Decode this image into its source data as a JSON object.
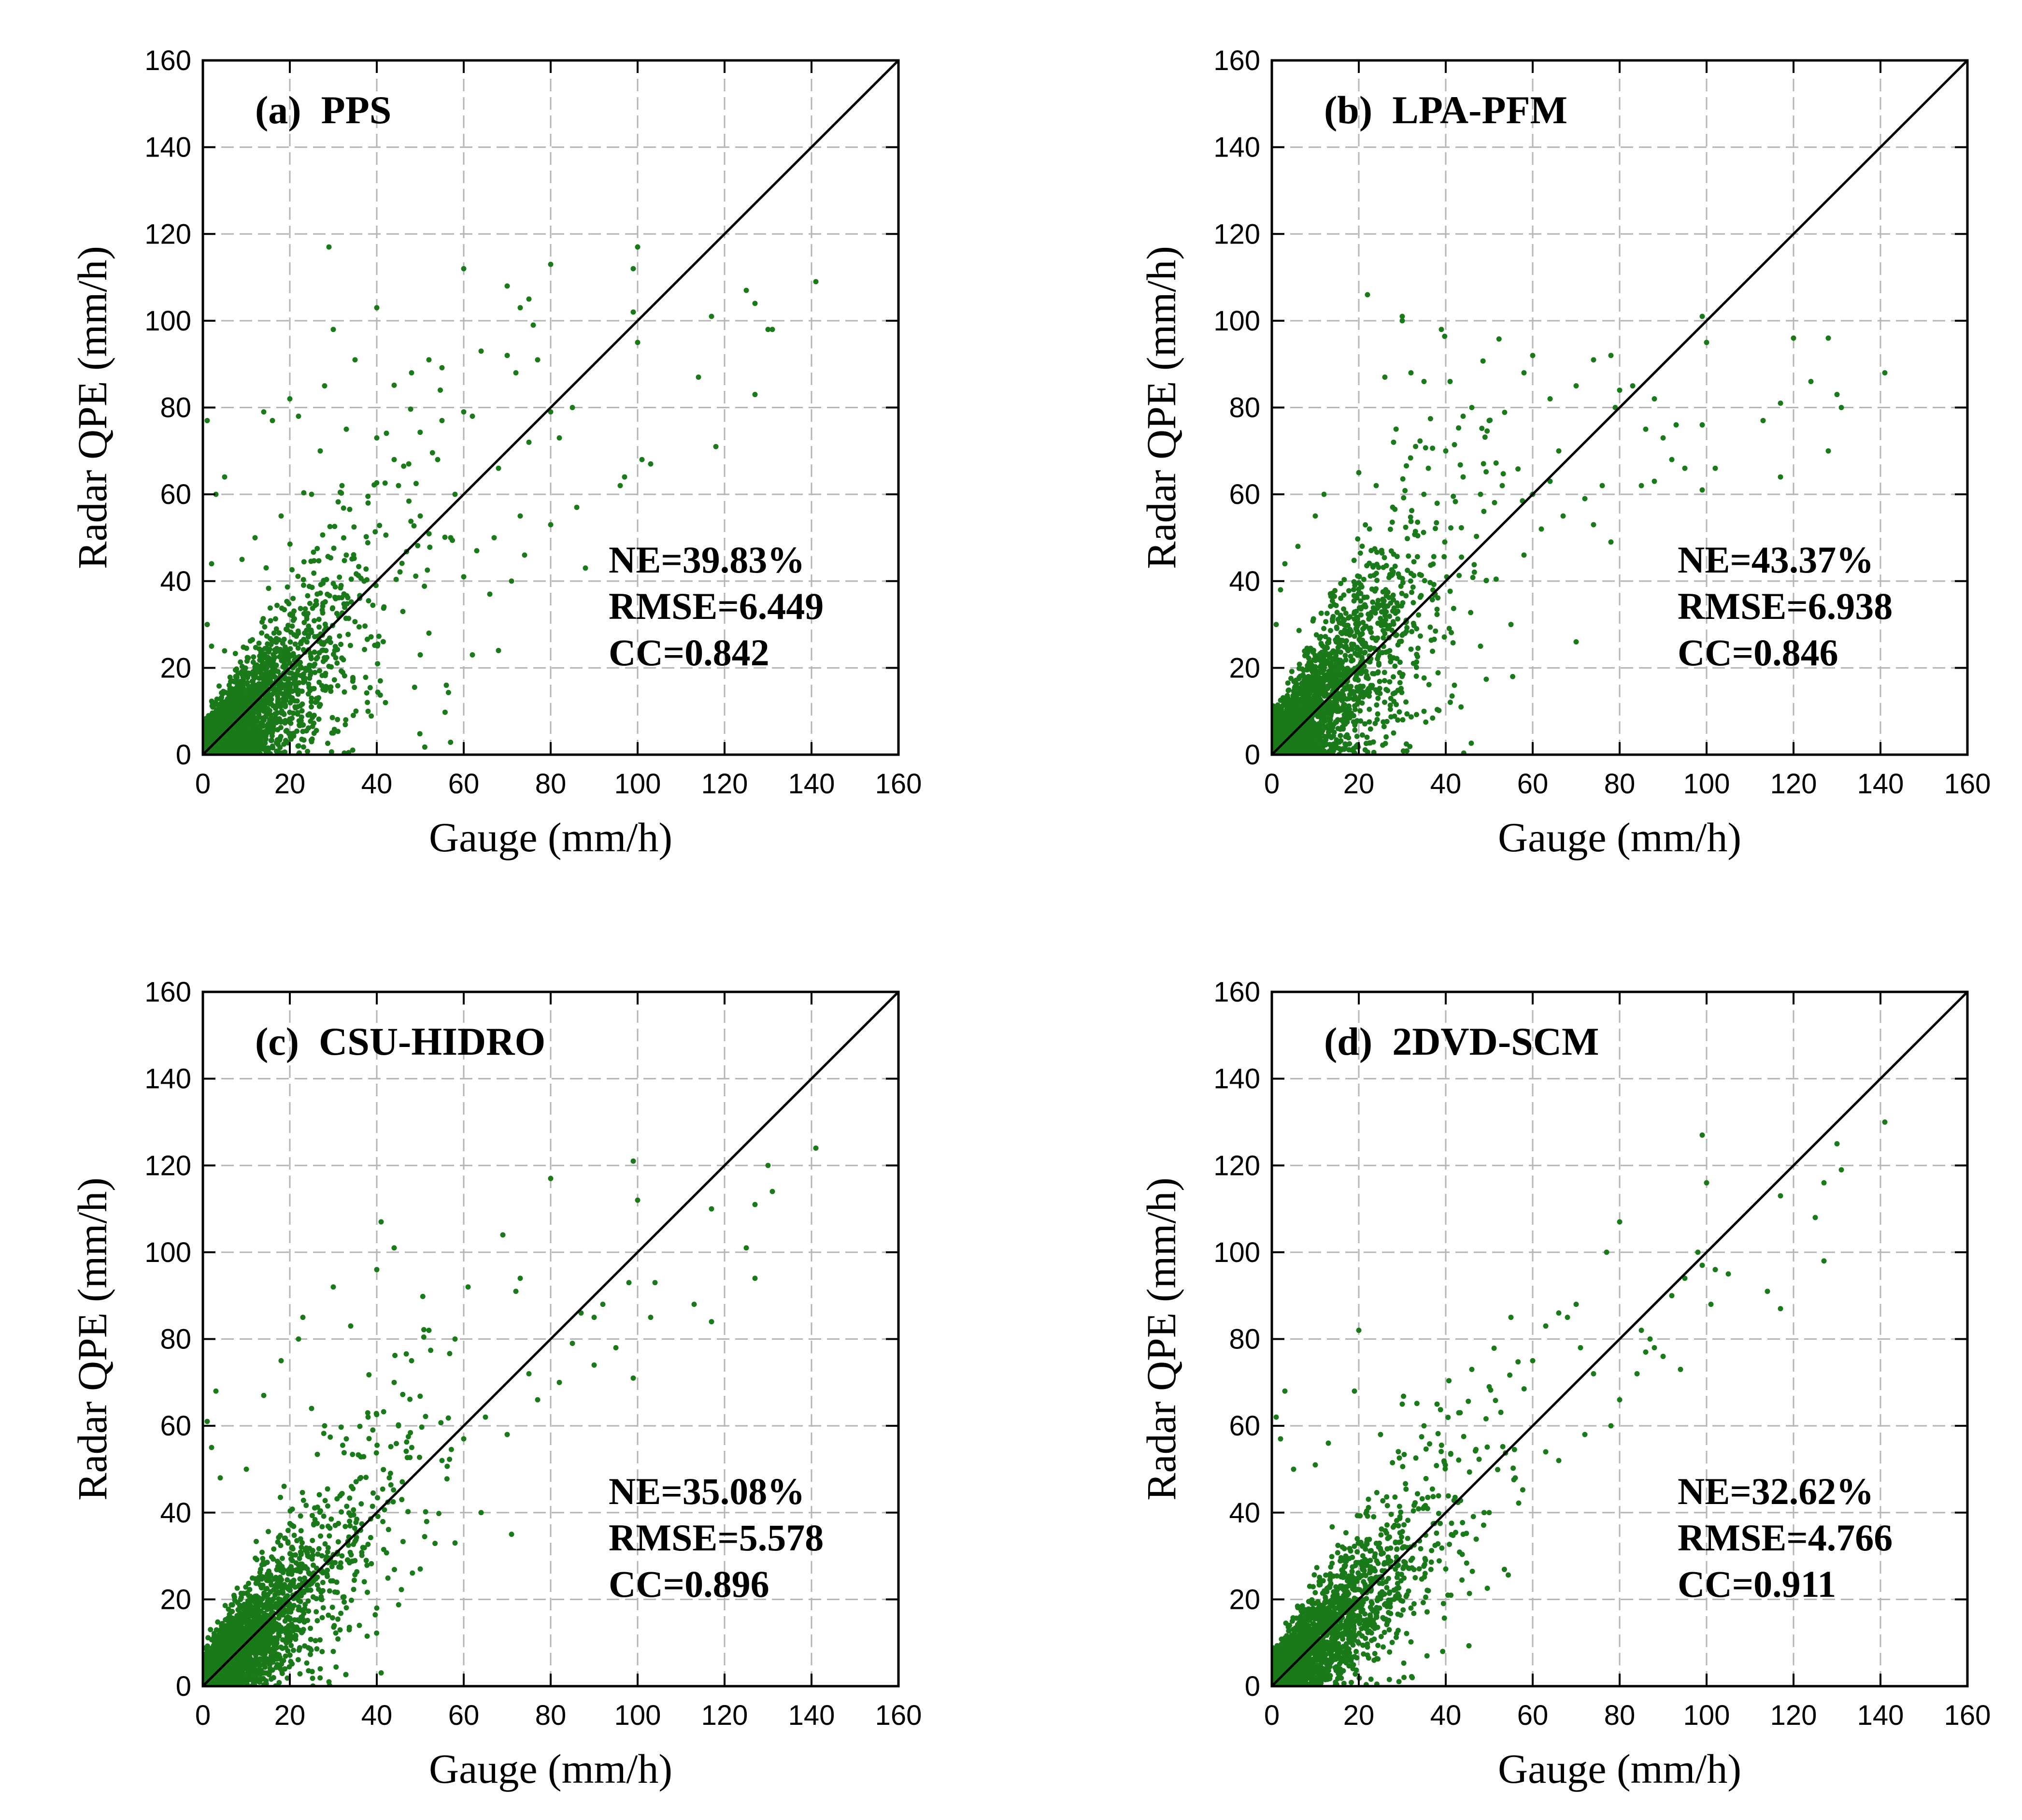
{
  "figure": {
    "point_color": "#1a7a1a",
    "line_color": "#000000",
    "grid_color": "#b5b5b5"
  },
  "chart_data": [
    {
      "type": "scatter",
      "panel_label": "(a)  PPS",
      "xlabel": "Gauge (mm/h)",
      "ylabel": "Radar QPE (mm/h)",
      "xlim": [
        0,
        160
      ],
      "ylim": [
        0,
        160
      ],
      "xticks": [
        "0",
        "20",
        "40",
        "60",
        "80",
        "100",
        "120",
        "140",
        "160"
      ],
      "yticks": [
        "0",
        "20",
        "40",
        "60",
        "80",
        "100",
        "120",
        "140",
        "160"
      ],
      "grid": true,
      "reference_line": "1:1",
      "stats": [
        "NE=39.83%",
        "RMSE=6.449",
        "CC=0.842"
      ],
      "point_cloud": {
        "n": 2600,
        "slope": 0.88,
        "spread": 0.36,
        "seed": 11
      },
      "points": [
        [
          29,
          117
        ],
        [
          40,
          103
        ],
        [
          60,
          112
        ],
        [
          70,
          108
        ],
        [
          73,
          103
        ],
        [
          75,
          105
        ],
        [
          80,
          113
        ],
        [
          99,
          112
        ],
        [
          100,
          117
        ],
        [
          99,
          102
        ],
        [
          100,
          95
        ],
        [
          117,
          101
        ],
        [
          125,
          107
        ],
        [
          127,
          104
        ],
        [
          130,
          98
        ],
        [
          131,
          98
        ],
        [
          141,
          109
        ],
        [
          118,
          71
        ],
        [
          114,
          87
        ],
        [
          127,
          83
        ],
        [
          85,
          80
        ],
        [
          80,
          79
        ],
        [
          82,
          73
        ],
        [
          96,
          62
        ],
        [
          101,
          68
        ],
        [
          103,
          67
        ],
        [
          97,
          64
        ],
        [
          86,
          57
        ],
        [
          88,
          43
        ],
        [
          72,
          88
        ],
        [
          70,
          92
        ],
        [
          77,
          91
        ],
        [
          64,
          93
        ],
        [
          55,
          77
        ],
        [
          52,
          91
        ],
        [
          48,
          88
        ],
        [
          60,
          79
        ],
        [
          62,
          78
        ],
        [
          76,
          99
        ],
        [
          75,
          72
        ],
        [
          68,
          66
        ],
        [
          73,
          55
        ],
        [
          80,
          53
        ],
        [
          71,
          40
        ],
        [
          66,
          37
        ],
        [
          60,
          41
        ],
        [
          52,
          28
        ],
        [
          62,
          23
        ],
        [
          30,
          98
        ],
        [
          35,
          91
        ],
        [
          33,
          75
        ],
        [
          28,
          85
        ],
        [
          20,
          82
        ],
        [
          14,
          79
        ],
        [
          16,
          77
        ],
        [
          22,
          78
        ],
        [
          27,
          70
        ],
        [
          40,
          73
        ],
        [
          44,
          68
        ],
        [
          1,
          77
        ],
        [
          5,
          64
        ],
        [
          3,
          60
        ],
        [
          2,
          44
        ],
        [
          1,
          30
        ],
        [
          2,
          25
        ],
        [
          50,
          23
        ],
        [
          56,
          16
        ],
        [
          68,
          24
        ],
        [
          42,
          12
        ],
        [
          38,
          10
        ],
        [
          30,
          5
        ],
        [
          25,
          3
        ],
        [
          32,
          62
        ],
        [
          45,
          62
        ],
        [
          50,
          55
        ],
        [
          57,
          50
        ],
        [
          63,
          47
        ],
        [
          67,
          50
        ],
        [
          74,
          46
        ],
        [
          58,
          60
        ],
        [
          54,
          68
        ],
        [
          38,
          58
        ],
        [
          25,
          60
        ],
        [
          18,
          55
        ],
        [
          12,
          50
        ],
        [
          9,
          45
        ],
        [
          46,
          33
        ]
      ]
    },
    {
      "type": "scatter",
      "panel_label": "(b)  LPA-PFM",
      "xlabel": "Gauge (mm/h)",
      "ylabel": "Radar QPE (mm/h)",
      "xlim": [
        0,
        160
      ],
      "ylim": [
        0,
        160
      ],
      "xticks": [
        "0",
        "20",
        "40",
        "60",
        "80",
        "100",
        "120",
        "140",
        "160"
      ],
      "yticks": [
        "0",
        "20",
        "40",
        "60",
        "80",
        "100",
        "120",
        "140",
        "160"
      ],
      "grid": true,
      "reference_line": "1:1",
      "stats": [
        "NE=43.37%",
        "RMSE=6.938",
        "CC=0.846"
      ],
      "point_cloud": {
        "n": 2600,
        "slope": 1.06,
        "spread": 0.42,
        "seed": 23
      },
      "points": [
        [
          22,
          106
        ],
        [
          30,
          101
        ],
        [
          30,
          100
        ],
        [
          39,
          98
        ],
        [
          41,
          86
        ],
        [
          32,
          88
        ],
        [
          26,
          87
        ],
        [
          35,
          86
        ],
        [
          46,
          80
        ],
        [
          44,
          78
        ],
        [
          50,
          77
        ],
        [
          60,
          92
        ],
        [
          58,
          88
        ],
        [
          64,
          82
        ],
        [
          70,
          85
        ],
        [
          74,
          91
        ],
        [
          78,
          92
        ],
        [
          83,
          85
        ],
        [
          79,
          80
        ],
        [
          86,
          75
        ],
        [
          90,
          73
        ],
        [
          93,
          76
        ],
        [
          95,
          66
        ],
        [
          99,
          61
        ],
        [
          99,
          76
        ],
        [
          102,
          66
        ],
        [
          100,
          95
        ],
        [
          99,
          101
        ],
        [
          113,
          77
        ],
        [
          117,
          81
        ],
        [
          117,
          64
        ],
        [
          120,
          96
        ],
        [
          124,
          86
        ],
        [
          128,
          96
        ],
        [
          128,
          70
        ],
        [
          130,
          83
        ],
        [
          131,
          80
        ],
        [
          141,
          88
        ],
        [
          85,
          62
        ],
        [
          88,
          63
        ],
        [
          92,
          68
        ],
        [
          76,
          62
        ],
        [
          72,
          59
        ],
        [
          70,
          26
        ],
        [
          64,
          63
        ],
        [
          60,
          60
        ],
        [
          66,
          70
        ],
        [
          53,
          62
        ],
        [
          48,
          60
        ],
        [
          44,
          64
        ],
        [
          40,
          70
        ],
        [
          36,
          66
        ],
        [
          28,
          72
        ],
        [
          24,
          62
        ],
        [
          20,
          65
        ],
        [
          12,
          60
        ],
        [
          10,
          55
        ],
        [
          6,
          48
        ],
        [
          3,
          44
        ],
        [
          2,
          38
        ],
        [
          1,
          30
        ],
        [
          58,
          46
        ],
        [
          62,
          52
        ],
        [
          67,
          55
        ],
        [
          74,
          53
        ],
        [
          78,
          49
        ],
        [
          55,
          30
        ],
        [
          48,
          25
        ],
        [
          42,
          16
        ],
        [
          35,
          10
        ],
        [
          28,
          5
        ],
        [
          80,
          84
        ],
        [
          88,
          82
        ]
      ]
    },
    {
      "type": "scatter",
      "panel_label": "(c)  CSU-HIDRO",
      "xlabel": "Gauge (mm/h)",
      "ylabel": "Radar QPE (mm/h)",
      "xlim": [
        0,
        160
      ],
      "ylim": [
        0,
        160
      ],
      "xticks": [
        "0",
        "20",
        "40",
        "60",
        "80",
        "100",
        "120",
        "140",
        "160"
      ],
      "yticks": [
        "0",
        "20",
        "40",
        "60",
        "80",
        "100",
        "120",
        "140",
        "160"
      ],
      "grid": true,
      "reference_line": "1:1",
      "stats": [
        "NE=35.08%",
        "RMSE=5.578",
        "CC=0.896"
      ],
      "point_cloud": {
        "n": 2600,
        "slope": 1.0,
        "spread": 0.3,
        "seed": 37
      },
      "points": [
        [
          41,
          107
        ],
        [
          44,
          101
        ],
        [
          40,
          96
        ],
        [
          80,
          117
        ],
        [
          99,
          121
        ],
        [
          100,
          112
        ],
        [
          104,
          93
        ],
        [
          113,
          88
        ],
        [
          117,
          110
        ],
        [
          117,
          84
        ],
        [
          125,
          101
        ],
        [
          127,
          111
        ],
        [
          127,
          94
        ],
        [
          130,
          120
        ],
        [
          131,
          114
        ],
        [
          141,
          124
        ],
        [
          99,
          71
        ],
        [
          95,
          78
        ],
        [
          90,
          85
        ],
        [
          87,
          86
        ],
        [
          85,
          79
        ],
        [
          82,
          70
        ],
        [
          77,
          66
        ],
        [
          75,
          72
        ],
        [
          72,
          91
        ],
        [
          69,
          104
        ],
        [
          73,
          94
        ],
        [
          61,
          92
        ],
        [
          58,
          80
        ],
        [
          52,
          82
        ],
        [
          48,
          75
        ],
        [
          44,
          70
        ],
        [
          34,
          83
        ],
        [
          30,
          92
        ],
        [
          23,
          85
        ],
        [
          22,
          80
        ],
        [
          18,
          75
        ],
        [
          14,
          67
        ],
        [
          3,
          68
        ],
        [
          1,
          61
        ],
        [
          2,
          55
        ],
        [
          4,
          48
        ],
        [
          10,
          50
        ],
        [
          25,
          64
        ],
        [
          28,
          60
        ],
        [
          33,
          57
        ],
        [
          38,
          62
        ],
        [
          45,
          60
        ],
        [
          55,
          52
        ],
        [
          60,
          57
        ],
        [
          65,
          62
        ],
        [
          70,
          58
        ],
        [
          71,
          35
        ],
        [
          64,
          40
        ],
        [
          58,
          33
        ],
        [
          50,
          27
        ],
        [
          40,
          18
        ],
        [
          36,
          14
        ],
        [
          30,
          8
        ],
        [
          27,
          4
        ],
        [
          29,
          1
        ],
        [
          90,
          74
        ],
        [
          92,
          88
        ],
        [
          103,
          85
        ],
        [
          98,
          93
        ]
      ]
    },
    {
      "type": "scatter",
      "panel_label": "(d)  2DVD-SCM",
      "xlabel": "Gauge (mm/h)",
      "ylabel": "Radar QPE (mm/h)",
      "xlim": [
        0,
        160
      ],
      "ylim": [
        0,
        160
      ],
      "xticks": [
        "0",
        "20",
        "40",
        "60",
        "80",
        "100",
        "120",
        "140",
        "160"
      ],
      "yticks": [
        "0",
        "20",
        "40",
        "60",
        "80",
        "100",
        "120",
        "140",
        "160"
      ],
      "grid": true,
      "reference_line": "1:1",
      "stats": [
        "NE=32.62%",
        "RMSE=4.766",
        "CC=0.911"
      ],
      "point_cloud": {
        "n": 2600,
        "slope": 0.96,
        "spread": 0.26,
        "seed": 53
      },
      "points": [
        [
          99,
          127
        ],
        [
          100,
          116
        ],
        [
          98,
          100
        ],
        [
          99,
          97
        ],
        [
          102,
          96
        ],
        [
          101,
          88
        ],
        [
          95,
          94
        ],
        [
          92,
          90
        ],
        [
          88,
          78
        ],
        [
          86,
          77
        ],
        [
          85,
          82
        ],
        [
          87,
          80
        ],
        [
          90,
          76
        ],
        [
          94,
          73
        ],
        [
          84,
          72
        ],
        [
          80,
          107
        ],
        [
          77,
          100
        ],
        [
          70,
          88
        ],
        [
          68,
          85
        ],
        [
          66,
          86
        ],
        [
          71,
          78
        ],
        [
          74,
          72
        ],
        [
          63,
          83
        ],
        [
          60,
          75
        ],
        [
          55,
          85
        ],
        [
          50,
          69
        ],
        [
          46,
          73
        ],
        [
          43,
          63
        ],
        [
          38,
          65
        ],
        [
          35,
          60
        ],
        [
          30,
          65
        ],
        [
          25,
          58
        ],
        [
          20,
          82
        ],
        [
          19,
          68
        ],
        [
          3,
          68
        ],
        [
          1,
          62
        ],
        [
          2,
          57
        ],
        [
          5,
          50
        ],
        [
          10,
          51
        ],
        [
          13,
          56
        ],
        [
          114,
          91
        ],
        [
          117,
          87
        ],
        [
          117,
          113
        ],
        [
          125,
          108
        ],
        [
          127,
          116
        ],
        [
          127,
          98
        ],
        [
          130,
          125
        ],
        [
          131,
          119
        ],
        [
          141,
          130
        ],
        [
          105,
          95
        ],
        [
          63,
          54
        ],
        [
          56,
          48
        ],
        [
          50,
          40
        ],
        [
          44,
          35
        ],
        [
          40,
          27
        ],
        [
          36,
          22
        ],
        [
          32,
          18
        ],
        [
          27,
          13
        ],
        [
          22,
          9
        ],
        [
          80,
          66
        ],
        [
          78,
          60
        ],
        [
          72,
          58
        ],
        [
          66,
          52
        ]
      ]
    }
  ]
}
